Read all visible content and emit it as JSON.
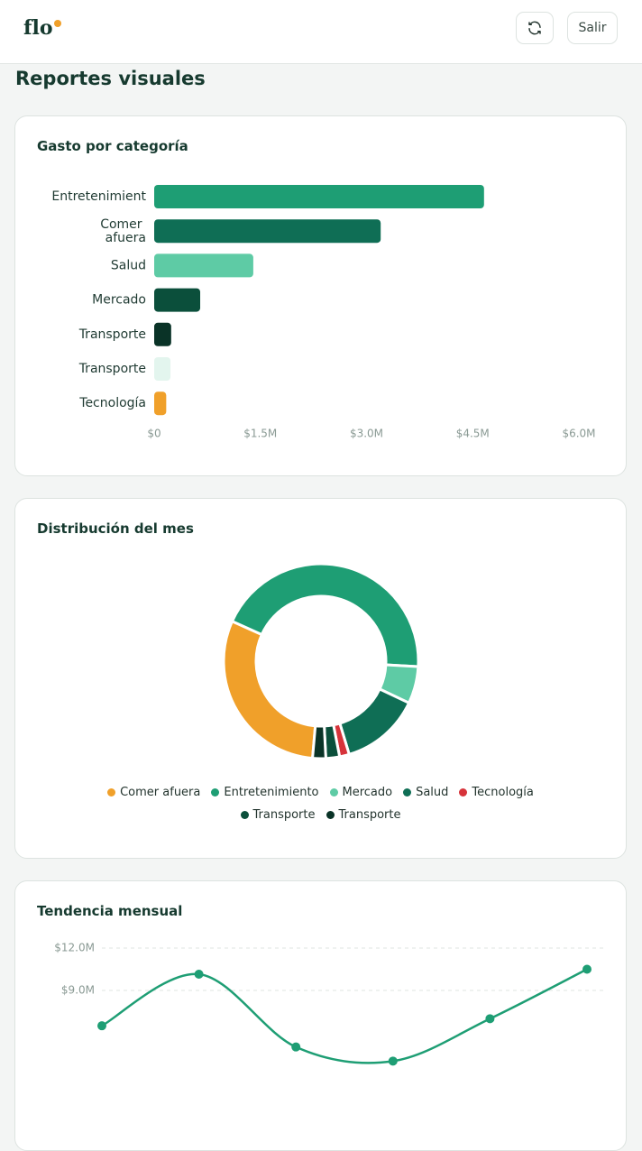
{
  "header": {
    "logo": "flo",
    "logout_button": "Salir"
  },
  "page_title": "Reportes visuales",
  "chart_data": [
    {
      "type": "bar",
      "orientation": "horizontal",
      "title": "Gasto por categoría",
      "categories": [
        "Entretenimient",
        "Comer afuera",
        "Salud",
        "Mercado",
        "Transporte",
        "Transporte",
        "Tecnología"
      ],
      "values": [
        4660000,
        3200000,
        1400000,
        650000,
        240000,
        230000,
        170000
      ],
      "colors": [
        "#1e9e74",
        "#0f6e55",
        "#5ecba5",
        "#0b4f3b",
        "#0a3327",
        "#e3f5ee",
        "#f0a02a"
      ],
      "xlim": [
        0,
        6000000
      ],
      "xticks": [
        {
          "value": 0,
          "label": "$0"
        },
        {
          "value": 1500000,
          "label": "$1.5M"
        },
        {
          "value": 3000000,
          "label": "$3.0M"
        },
        {
          "value": 4500000,
          "label": "$4.5M"
        },
        {
          "value": 6000000,
          "label": "$6.0M"
        }
      ]
    },
    {
      "type": "pie",
      "title": "Distribución del mes",
      "categories": [
        "Comer afuera",
        "Entretenimiento",
        "Mercado",
        "Salud",
        "Tecnología",
        "Transporte",
        "Transporte"
      ],
      "values": [
        3200000,
        4660000,
        650000,
        1400000,
        170000,
        240000,
        230000
      ],
      "colors": [
        "#f0a02a",
        "#1e9e74",
        "#5ecba5",
        "#0f6e55",
        "#d6333a",
        "#0b4f3b",
        "#0a3327"
      ],
      "legend": "bottom"
    },
    {
      "type": "line",
      "title": "Tendencia mensual",
      "categories": [
        null,
        null,
        null,
        null,
        null,
        null
      ],
      "values": [
        6500000,
        10150000,
        5000000,
        4000000,
        7000000,
        10500000
      ],
      "color": "#1e9e74",
      "ylim": [
        0,
        12000000
      ],
      "yticks": [
        {
          "value": 9000000,
          "label": "$9.0M"
        },
        {
          "value": 12000000,
          "label": "$12.0M"
        }
      ],
      "grid": true
    }
  ]
}
